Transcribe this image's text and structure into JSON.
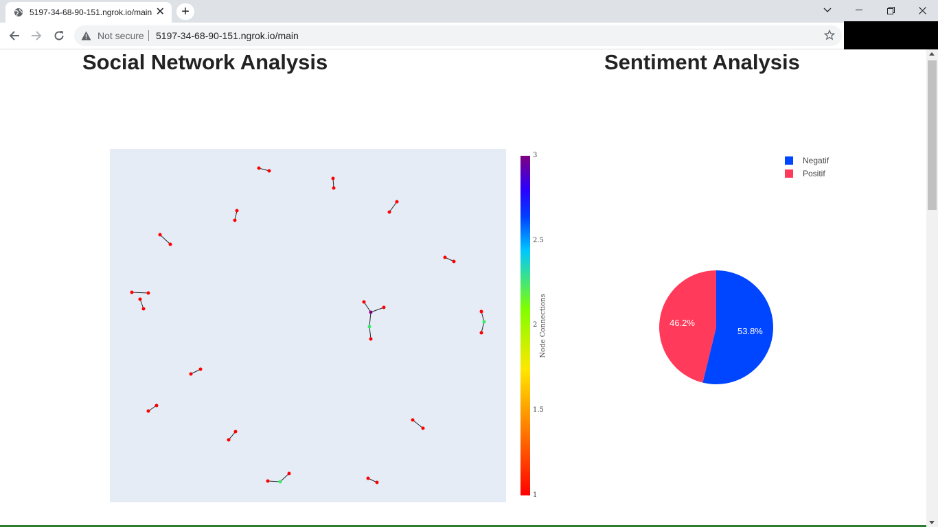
{
  "browser": {
    "tab_title": "5197-34-68-90-151.ngrok.io/main",
    "close_glyph": "✕",
    "new_tab_glyph": "+",
    "not_secure_label": "Not secure",
    "url": "5197-34-68-90-151.ngrok.io/main",
    "icons": [
      "globe-icon",
      "close-icon",
      "plus-icon",
      "chevron-down-icon",
      "minimize-icon",
      "restore-icon",
      "close-window-icon",
      "back-arrow-icon",
      "forward-arrow-icon",
      "reload-icon",
      "warning-icon",
      "star-icon"
    ]
  },
  "page": {
    "network_title": "Social Network Analysis",
    "sentiment_title": "Sentiment Analysis"
  },
  "colorbar": {
    "title": "Node Connections",
    "ticks": [
      "3",
      "2.5",
      "2",
      "1.5",
      "1"
    ]
  },
  "chart_data": [
    {
      "type": "pie",
      "labels": [
        "Negatif",
        "Positif"
      ],
      "values": [
        53.8,
        46.2
      ],
      "text": [
        "53.8%",
        "46.2%"
      ],
      "colors": [
        "#0045ff",
        "#ff3a5a"
      ],
      "legend_placement": "top-right"
    }
  ],
  "network": {
    "colorscale": "node connections: 1 = red, 2 = green, 3 = purple",
    "edge_color": "#222222",
    "node_colors": {
      "1": "#ff0000",
      "2": "#33ee66",
      "3": "#800080"
    }
  }
}
